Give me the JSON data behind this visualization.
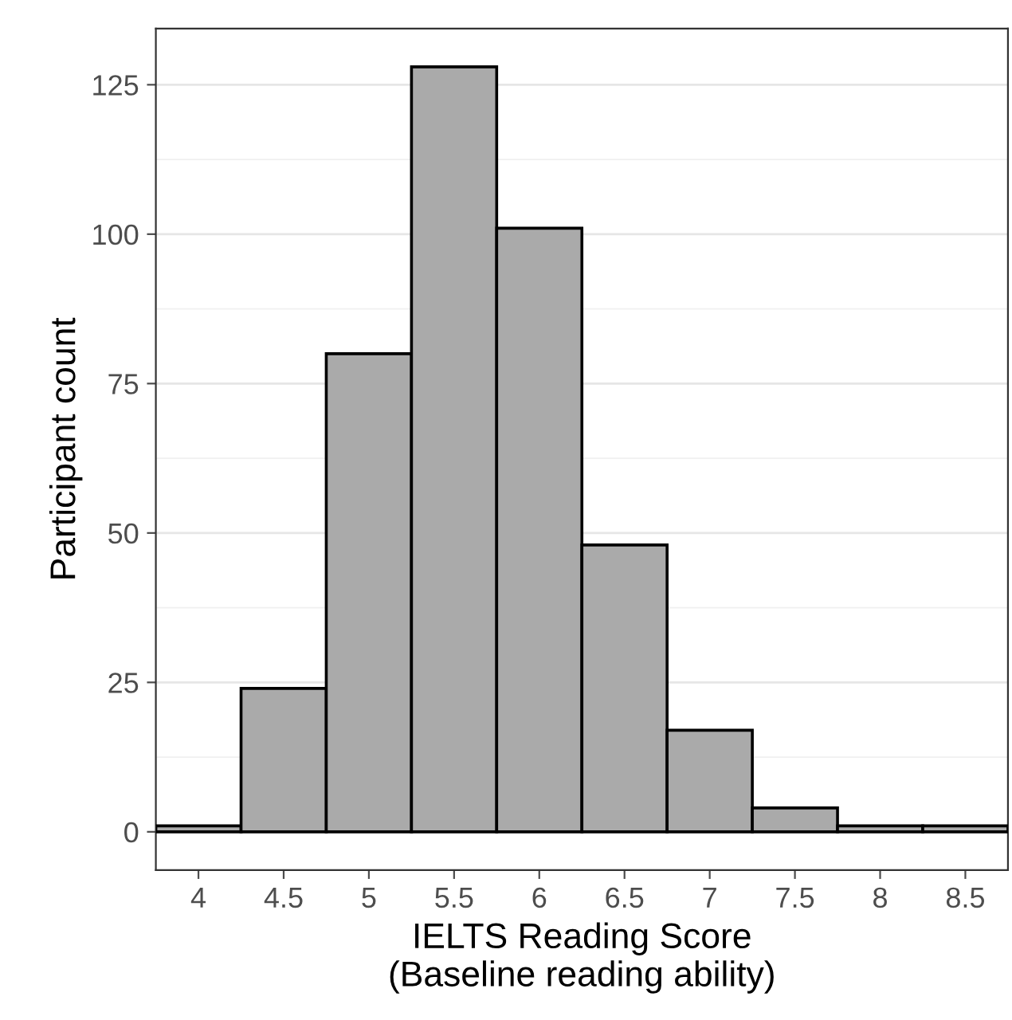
{
  "chart_data": {
    "type": "histogram",
    "xlabel": "IELTS Reading Score\n(Baseline reading ability)",
    "ylabel": "Participant count",
    "bins": [
      3.75,
      4.25,
      4.75,
      5.25,
      5.75,
      6.25,
      6.75,
      7.25,
      7.75,
      8.25,
      8.75
    ],
    "values": [
      1,
      24,
      80,
      128,
      101,
      48,
      17,
      4,
      1,
      1
    ],
    "color": "#aaaaaa",
    "xlim": [
      3.75,
      8.75
    ],
    "xticks": [
      4,
      4.5,
      5,
      5.5,
      6,
      6.5,
      7,
      7.5,
      8,
      8.5
    ],
    "ylim": [
      -6.4,
      134.4
    ],
    "yticks": [
      0,
      25,
      50,
      75,
      100,
      125
    ],
    "grid": "y"
  }
}
